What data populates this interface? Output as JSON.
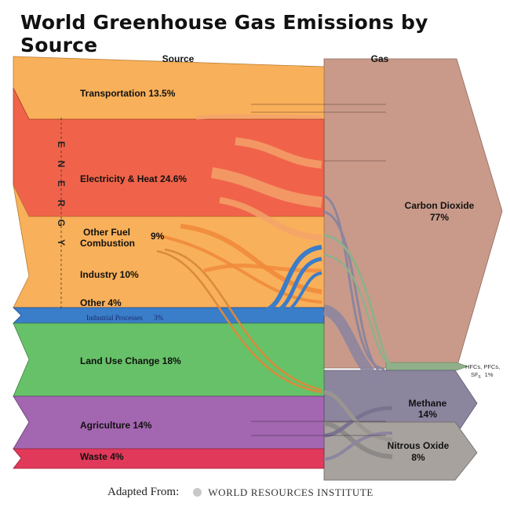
{
  "title": "World Greenhouse Gas Emissions by Source",
  "headers": {
    "source": "Source",
    "gas": "Gas"
  },
  "energy_group": "ENERGY",
  "sources": [
    {
      "name": "Transportation",
      "value": "13.5%",
      "color": "#f9b05a"
    },
    {
      "name": "Electricity & Heat",
      "value": "24.6%",
      "color": "#f0634a"
    },
    {
      "name": "Other Fuel Combustion",
      "value": "9%",
      "color": "#f9b05a"
    },
    {
      "name": "Industry",
      "value": "10%",
      "color": "#f9b05a"
    },
    {
      "name": "Other",
      "value": "4%",
      "color": "#f9b05a"
    },
    {
      "name": "Industrial Processes",
      "value": "3%",
      "color": "#3a7dc9"
    },
    {
      "name": "Land Use Change",
      "value": "18%",
      "color": "#67c168"
    },
    {
      "name": "Agriculture",
      "value": "14%",
      "color": "#a366b0"
    },
    {
      "name": "Waste",
      "value": "4%",
      "color": "#e0395a"
    }
  ],
  "labels": {
    "transportation": "Transportation 13.5%",
    "electricity": "Electricity & Heat 24.6%",
    "other_fuel_line1": "Other Fuel",
    "other_fuel_line2": "Combustion",
    "other_fuel_pct": "9%",
    "industry": "Industry 10%",
    "other": "Other 4%",
    "industrial_processes": "Industrial Processes",
    "industrial_processes_pct": "3%",
    "land_use": "Land Use Change 18%",
    "agriculture": "Agriculture 14%",
    "waste": "Waste 4%"
  },
  "gases": [
    {
      "name": "Carbon Dioxide",
      "value": "77%",
      "color": "#c99a8a"
    },
    {
      "name": "Methane",
      "value": "14%",
      "color": "#8c859e"
    },
    {
      "name": "Nitrous Oxide",
      "value": "8%",
      "color": "#a8a29e"
    },
    {
      "name": "HFCs, PFCs, SF6",
      "value": "1%",
      "color": "#8fb08a"
    }
  ],
  "hfc_label": {
    "line1": "HFCs, PFCs,",
    "line2_main": "SF",
    "line2_sub": "6",
    "line2_pct": "1%"
  },
  "footer": {
    "adapted": "Adapted From:",
    "source_org": "WORLD RESOURCES INSTITUTE"
  }
}
